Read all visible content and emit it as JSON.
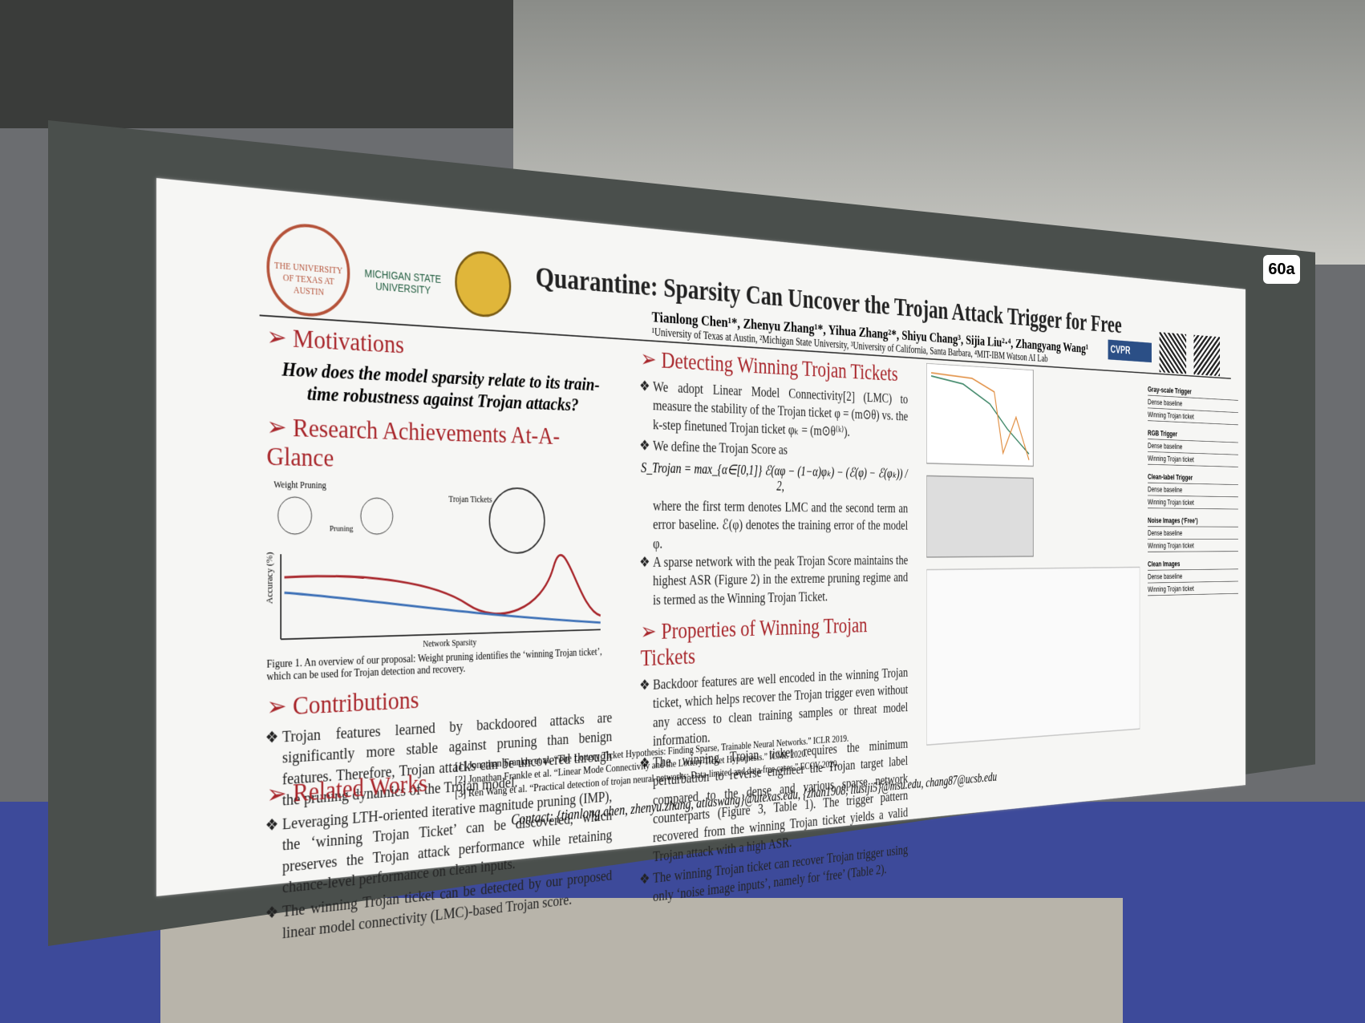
{
  "booth": "60a",
  "header": {
    "title": "Quarantine: Sparsity Can Uncover the Trojan Attack Trigger for Free",
    "authors": "Tianlong Chen¹*, Zhenyu Zhang¹*, Yihua Zhang²*, Shiyu Chang³, Sijia Liu²·⁴, Zhangyang Wang¹",
    "affiliations": "¹University of Texas at Austin, ²Michigan State University, ³University of California, Santa Barbara, ⁴MIT-IBM Watson AI Lab",
    "logo_ut": "THE UNIVERSITY OF TEXAS AT AUSTIN",
    "logo_msu": "MICHIGAN STATE UNIVERSITY",
    "badge": "CVPR"
  },
  "motivations": {
    "heading": "Motivations",
    "question": "How does the model sparsity relate to its train-time robustness against Trojan attacks?"
  },
  "achievements": {
    "heading": "Research Achievements At-A-Glance",
    "figure_labels": [
      "Weight Pruning",
      "Pruning",
      "Trojan Tickets",
      "Accuracy (%)",
      "Network Sparsity"
    ],
    "caption": "Figure 1. An overview of our proposal: Weight pruning identifies the ‘winning Trojan ticket’, which can be used for Trojan detection and recovery."
  },
  "contributions": {
    "heading": "Contributions",
    "items": [
      "Trojan features learned by backdoored attacks are significantly more stable against pruning than benign features. Therefore, Trojan attacks can be uncovered through the pruning dynamics of the Trojan model.",
      "Leveraging LTH-oriented iterative magnitude pruning (IMP), the ‘winning Trojan Ticket’ can be discovered, which preserves the Trojan attack performance while retaining chance-level performance on clean inputs.",
      "The winning Trojan ticket can be detected by our proposed linear model connectivity (LMC)-based Trojan score."
    ]
  },
  "detecting": {
    "heading": "Detecting Winning Trojan Tickets",
    "items": [
      "We adopt Linear Model Connectivity[2] (LMC) to measure the stability of the Trojan ticket φ = (m⊙θ) vs. the k-step finetuned Trojan ticket φₖ = (m⊙θ⁽ᵏ⁾).",
      "We define the Trojan Score as",
      "A sparse network with the peak Trojan Score maintains the highest ASR (Figure 2) in the extreme pruning regime and is termed as the Winning Trojan Ticket."
    ],
    "formula": "S_Trojan = max_{α∈[0,1]} ℰ(αφ − (1−α)φₖ) − (ℰ(φ) − ℰ(φₖ)) / 2,",
    "formula_note": "where the first term denotes LMC and the second term an error baseline. ℰ(φ) denotes the training error of the model φ."
  },
  "properties": {
    "heading": "Properties of Winning Trojan Tickets",
    "items": [
      "Backdoor features are well encoded in the winning Trojan ticket, which helps recover the Trojan trigger even without any access to clean training samples or threat model information.",
      "The winning Trojan ticket requires the minimum perturbation to reverse engineer the Trojan target label compared to the dense and various sparse network counterparts (Figure 3, Table 1). The trigger pattern recovered from the winning Trojan ticket yields a valid Trojan attack with a high ASR.",
      "The winning Trojan ticket can recover Trojan trigger using only ‘noise image inputs’, namely for ‘free’ (Table 2)."
    ]
  },
  "related": {
    "heading": "Related Works",
    "refs": [
      "[1] Jonathan Frankle et al. “The Lottery Ticket Hypothesis: Finding Sparse, Trainable Neural Networks.” ICLR 2019.",
      "[2] Jonathan Frankle et al. “Linear Mode Connectivity and the Lottery Ticket Hypothesis.” ICML 2020.",
      "[3] Ren Wang et al. “Practical detection of trojan neural networks: Data-limited and data-free cases.” ECCV 2020."
    ]
  },
  "contact": "Contact: {tianlong.chen, zhenyu.zhang, atlaswang}@utexas.edu, {zhan1908, liusiji5}@msu.edu, chang87@ucsb.edu",
  "tables": {
    "rows": [
      "Gray-scale Trigger",
      "Dense baseline",
      "Winning Trojan ticket",
      "RGB Trigger",
      "Dense baseline",
      "Winning Trojan ticket",
      "Clean-label Trigger",
      "Dense baseline",
      "Winning Trojan ticket",
      "Noise Images (‘Free’)",
      "Dense baseline",
      "Winning Trojan ticket",
      "Clean Images",
      "Dense baseline",
      "Winning Trojan ticket"
    ]
  }
}
